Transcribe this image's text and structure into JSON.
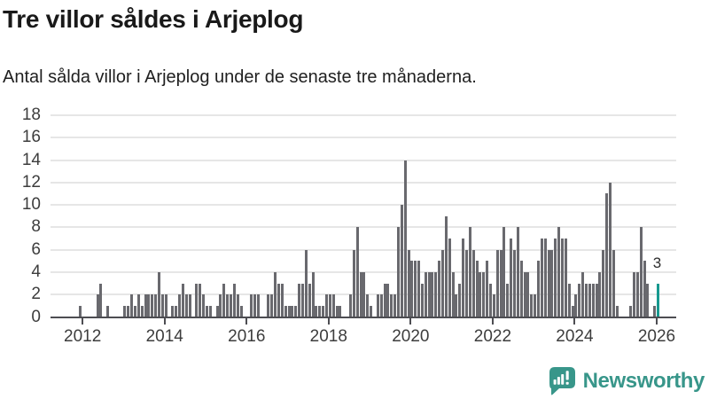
{
  "header": {
    "title": "Tre villor såldes i Arjeplog",
    "subtitle": "Antal sålda villor i Arjeplog under de senaste tre månaderna."
  },
  "chart_data": {
    "type": "bar",
    "title": "Tre villor såldes i Arjeplog",
    "subtitle": "Antal sålda villor i Arjeplog under de senaste tre månaderna.",
    "frequency": "monthly",
    "start_month": "2011-12",
    "end_month": "2026-01",
    "ylim": [
      0,
      18
    ],
    "y_ticks": [
      0,
      2,
      4,
      6,
      8,
      10,
      12,
      14,
      16,
      18
    ],
    "x_tick_years": [
      2012,
      2014,
      2016,
      2018,
      2020,
      2022,
      2024,
      2026
    ],
    "grid": "horizontal",
    "bar_color": "#69696e",
    "highlight_color": "#17998f",
    "highlight_last": true,
    "highlight_value_label": "3",
    "values": [
      1,
      0,
      0,
      0,
      0,
      2,
      3,
      0,
      1,
      0,
      0,
      0,
      0,
      1,
      1,
      2,
      1,
      2,
      1,
      2,
      2,
      2,
      2,
      4,
      2,
      2,
      0,
      1,
      1,
      2,
      3,
      2,
      2,
      0,
      3,
      3,
      2,
      1,
      1,
      0,
      1,
      2,
      3,
      2,
      2,
      3,
      2,
      1,
      0,
      0,
      2,
      2,
      2,
      0,
      0,
      2,
      2,
      4,
      3,
      3,
      1,
      1,
      1,
      1,
      3,
      3,
      6,
      3,
      4,
      1,
      1,
      1,
      2,
      2,
      2,
      1,
      1,
      0,
      0,
      2,
      6,
      8,
      4,
      4,
      2,
      1,
      0,
      2,
      2,
      3,
      3,
      2,
      2,
      8,
      10,
      14,
      6,
      5,
      5,
      5,
      3,
      4,
      4,
      4,
      4,
      5,
      6,
      9,
      7,
      4,
      2,
      3,
      7,
      6,
      8,
      6,
      5,
      4,
      4,
      5,
      3,
      2,
      6,
      6,
      8,
      3,
      7,
      6,
      8,
      5,
      4,
      4,
      2,
      2,
      5,
      7,
      7,
      6,
      6,
      7,
      8,
      7,
      7,
      3,
      1,
      2,
      3,
      4,
      3,
      3,
      3,
      3,
      4,
      6,
      11,
      12,
      6,
      1,
      0,
      0,
      0,
      1,
      4,
      4,
      8,
      5,
      3,
      0,
      1,
      3
    ]
  },
  "footer": {
    "brand": "Newsworthy",
    "brand_color": "#38968a"
  }
}
